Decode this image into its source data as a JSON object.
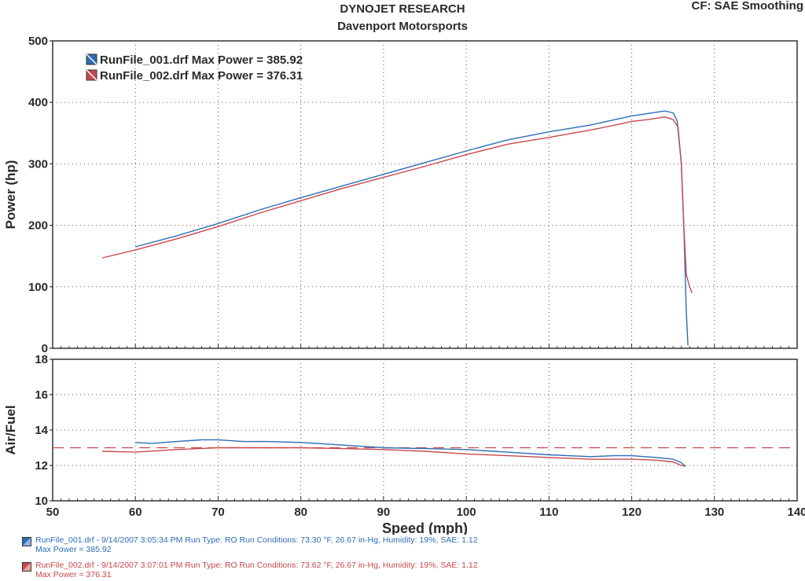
{
  "header": {
    "title": "DYNOJET RESEARCH",
    "subtitle": "Davenport Motorsports",
    "cf_info": "CF: SAE  Smoothing"
  },
  "colors": {
    "run1": "#2f6db5",
    "run2": "#c8484c",
    "axis": "#333333",
    "grid": "#555555"
  },
  "chart_data": [
    {
      "type": "line",
      "ylabel": "Power (hp)",
      "xlim": [
        50,
        140
      ],
      "ylim": [
        0,
        500
      ],
      "yticks": [
        "0",
        "100",
        "200",
        "300",
        "400",
        "500"
      ],
      "grid": true,
      "legend_position": "top-left",
      "series": [
        {
          "name": "RunFile_001.drf Max Power = 385.92",
          "color": "#2f6db5",
          "x": [
            60,
            65,
            70,
            75,
            80,
            85,
            90,
            95,
            100,
            105,
            110,
            115,
            118,
            120,
            122,
            123,
            124,
            125,
            125.5,
            126,
            126.3,
            126.6,
            126.8
          ],
          "y": [
            165,
            183,
            203,
            225,
            245,
            264,
            283,
            302,
            321,
            339,
            352,
            363,
            372,
            378,
            382,
            384,
            385.92,
            383,
            370,
            300,
            200,
            60,
            5
          ]
        },
        {
          "name": "RunFile_002.drf Max Power = 376.31",
          "color": "#c8484c",
          "x": [
            56,
            60,
            65,
            70,
            75,
            80,
            85,
            90,
            95,
            100,
            105,
            110,
            115,
            118,
            120,
            122,
            124,
            125,
            125.6,
            126,
            126.3,
            126.6,
            127,
            127.3
          ],
          "y": [
            147,
            160,
            178,
            198,
            220,
            240,
            260,
            278,
            296,
            315,
            332,
            343,
            355,
            363,
            369,
            372,
            376.31,
            372,
            360,
            300,
            200,
            120,
            100,
            90
          ]
        }
      ]
    },
    {
      "type": "line",
      "xlabel": "Speed (mph)",
      "ylabel": "Air/Fuel",
      "xlim": [
        50,
        140
      ],
      "ylim": [
        10,
        18
      ],
      "xticks": [
        "50",
        "60",
        "70",
        "80",
        "90",
        "100",
        "110",
        "120",
        "130",
        "140"
      ],
      "yticks": [
        "10",
        "12",
        "14",
        "16",
        "18"
      ],
      "grid": true,
      "reference_line": 13.0,
      "series": [
        {
          "name": "RunFile_001.drf",
          "color": "#2f6db5",
          "x": [
            60,
            62,
            65,
            68,
            70,
            73,
            76,
            80,
            85,
            90,
            95,
            100,
            105,
            110,
            115,
            118,
            120,
            123,
            125,
            126,
            126.5
          ],
          "y": [
            13.3,
            13.25,
            13.35,
            13.45,
            13.45,
            13.35,
            13.35,
            13.3,
            13.15,
            13.0,
            12.95,
            12.9,
            12.75,
            12.6,
            12.5,
            12.55,
            12.55,
            12.45,
            12.35,
            12.15,
            11.95
          ]
        },
        {
          "name": "RunFile_002.drf",
          "color": "#c8484c",
          "x": [
            56,
            60,
            65,
            70,
            75,
            80,
            85,
            90,
            95,
            100,
            105,
            110,
            115,
            120,
            123,
            125,
            126,
            126.5
          ],
          "y": [
            12.8,
            12.75,
            12.9,
            13.0,
            13.0,
            13.0,
            12.95,
            12.9,
            12.8,
            12.65,
            12.55,
            12.45,
            12.35,
            12.35,
            12.3,
            12.2,
            12.0,
            11.95
          ]
        }
      ]
    }
  ],
  "footer": {
    "run1_line1": "RunFile_001.drf - 9/14/2007 3:05:34 PM  Run Type: RO  Run Conditions: 73.30 °F, 26.67 in-Hg,  Humidity:  19%, SAE: 1.12",
    "run1_line2": "Max Power = 385.92",
    "run2_line1": "RunFile_002.drf - 9/14/2007 3:07:01 PM  Run Type: RO  Run Conditions: 73.62 °F, 26.67 in-Hg,  Humidity:  19%, SAE: 1.12",
    "run2_line2": "Max Power = 376.31"
  }
}
